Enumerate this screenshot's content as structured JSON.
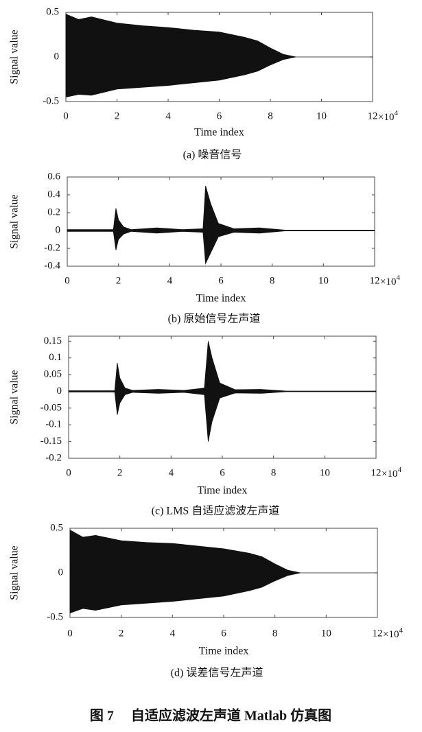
{
  "chart_data": [
    {
      "type": "area",
      "ylabel": "Signal value",
      "xlabel": "Time index",
      "x_multiplier": {
        "base": "×10",
        "exponent": "4"
      },
      "caption": "(a)  噪音信号",
      "xlim": [
        0,
        12
      ],
      "xticks": [
        0,
        2,
        4,
        6,
        8,
        10,
        12
      ],
      "ylim": [
        -0.5,
        0.5
      ],
      "yticks": [
        -0.5,
        0,
        0.5
      ],
      "grid": false,
      "x": [
        0,
        0.5,
        1,
        2,
        3,
        4,
        5,
        6,
        7,
        7.5,
        8,
        8.5,
        9,
        12
      ],
      "series": [
        {
          "color": "#111111",
          "values": [
            0.48,
            0.42,
            0.45,
            0.38,
            0.35,
            0.33,
            0.3,
            0.28,
            0.22,
            0.18,
            0.1,
            0.03,
            0,
            0
          ]
        },
        {
          "color": "#111111",
          "values": [
            -0.45,
            -0.42,
            -0.43,
            -0.36,
            -0.34,
            -0.32,
            -0.29,
            -0.26,
            -0.2,
            -0.16,
            -0.09,
            -0.03,
            0,
            0
          ]
        }
      ]
    },
    {
      "type": "area",
      "ylabel": "Signal value",
      "xlabel": "Time index",
      "x_multiplier": {
        "base": "×10",
        "exponent": "4"
      },
      "caption": "(b)  原始信号左声道",
      "xlim": [
        0,
        12
      ],
      "xticks": [
        0,
        2,
        4,
        6,
        8,
        10,
        12
      ],
      "ylim": [
        -0.4,
        0.6
      ],
      "yticks": [
        -0.4,
        -0.2,
        0,
        0.2,
        0.4,
        0.6
      ],
      "grid": false,
      "x": [
        0,
        1.8,
        1.9,
        2.0,
        2.2,
        2.5,
        3.5,
        4.5,
        5.3,
        5.4,
        5.6,
        5.9,
        6.5,
        7.5,
        8.5,
        12
      ],
      "series": [
        {
          "color": "#111111",
          "values": [
            0.01,
            0.01,
            0.25,
            0.12,
            0.04,
            0.01,
            0.03,
            0.01,
            0.02,
            0.5,
            0.3,
            0.08,
            0.02,
            0.03,
            0.005,
            0.005
          ]
        },
        {
          "color": "#111111",
          "values": [
            -0.01,
            -0.01,
            -0.22,
            -0.1,
            -0.04,
            -0.01,
            -0.03,
            -0.01,
            -0.02,
            -0.37,
            -0.25,
            -0.07,
            -0.02,
            -0.03,
            -0.005,
            -0.005
          ]
        }
      ]
    },
    {
      "type": "area",
      "ylabel": "Signal value",
      "xlabel": "Time index",
      "x_multiplier": {
        "base": "×10",
        "exponent": "4"
      },
      "caption": "(c) LMS 自适应滤波左声道",
      "xlim": [
        0,
        12
      ],
      "xticks": [
        0,
        2,
        4,
        6,
        8,
        10,
        12
      ],
      "ylim": [
        -0.2,
        0.165
      ],
      "yticks": [
        -0.2,
        -0.15,
        -0.1,
        -0.05,
        0,
        0.05,
        0.1,
        0.15
      ],
      "grid": false,
      "x": [
        0,
        1.8,
        1.9,
        2.0,
        2.2,
        2.5,
        3.5,
        4.5,
        5.3,
        5.45,
        5.6,
        5.9,
        6.5,
        7.5,
        8.5,
        12
      ],
      "series": [
        {
          "color": "#111111",
          "values": [
            0.002,
            0.002,
            0.085,
            0.04,
            0.01,
            0.003,
            0.006,
            0.003,
            0.01,
            0.15,
            0.1,
            0.025,
            0.005,
            0.006,
            0.001,
            0.001
          ]
        },
        {
          "color": "#111111",
          "values": [
            -0.002,
            -0.002,
            -0.07,
            -0.035,
            -0.01,
            -0.003,
            -0.006,
            -0.003,
            -0.01,
            -0.15,
            -0.09,
            -0.02,
            -0.005,
            -0.006,
            -0.001,
            -0.001
          ]
        }
      ]
    },
    {
      "type": "area",
      "ylabel": "Signal value",
      "xlabel": "Time index",
      "x_multiplier": {
        "base": "×10",
        "exponent": "4"
      },
      "caption": "(d)  误差信号左声道",
      "xlim": [
        0,
        12
      ],
      "xticks": [
        0,
        2,
        4,
        6,
        8,
        10,
        12
      ],
      "ylim": [
        -0.5,
        0.5
      ],
      "yticks": [
        -0.5,
        0,
        0.5
      ],
      "grid": false,
      "x": [
        0,
        0.5,
        1,
        2,
        3,
        4,
        5,
        6,
        7,
        7.5,
        8,
        8.5,
        9,
        12
      ],
      "series": [
        {
          "color": "#111111",
          "values": [
            0.48,
            0.4,
            0.42,
            0.36,
            0.34,
            0.33,
            0.3,
            0.27,
            0.22,
            0.18,
            0.1,
            0.03,
            0,
            0
          ]
        },
        {
          "color": "#111111",
          "values": [
            -0.45,
            -0.4,
            -0.42,
            -0.36,
            -0.34,
            -0.32,
            -0.29,
            -0.26,
            -0.2,
            -0.16,
            -0.09,
            -0.03,
            0,
            0
          ]
        }
      ]
    }
  ],
  "figure_caption": "图 7　 自适应滤波左声道 Matlab 仿真图"
}
